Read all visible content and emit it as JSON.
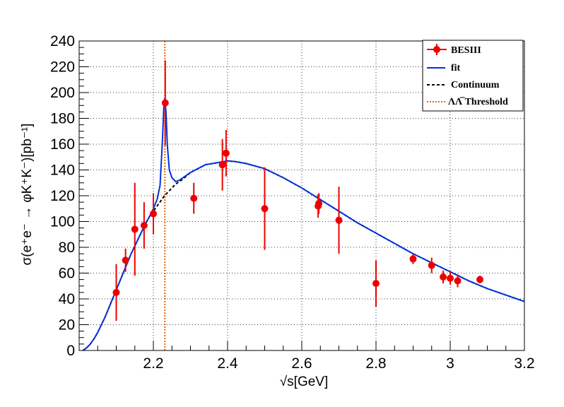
{
  "chart_data": {
    "type": "scatter",
    "xlabel": "√s[GeV]",
    "ylabel": "σ(e⁺e⁻ → φK⁺K⁻)[pb⁻¹]",
    "xlim": [
      2.0,
      3.2
    ],
    "ylim": [
      0,
      240
    ],
    "xticks": [
      2.2,
      2.4,
      2.6,
      2.8,
      3.0,
      3.2
    ],
    "xtick_labels": [
      "2.2",
      "2.4",
      "2.6",
      "2.8",
      "3",
      "3.2"
    ],
    "yticks": [
      0,
      20,
      40,
      60,
      80,
      100,
      120,
      140,
      160,
      180,
      200,
      220,
      240
    ],
    "ytick_labels": [
      "0",
      "20",
      "40",
      "60",
      "80",
      "100",
      "120",
      "140",
      "160",
      "180",
      "200",
      "220",
      "240"
    ],
    "grid": true,
    "legend_position": "top-right",
    "threshold_x": 2.231,
    "series": [
      {
        "name": "BESIII",
        "kind": "points",
        "color": "#ee0000",
        "points": [
          {
            "x": 2.1,
            "y": 45,
            "err": 22
          },
          {
            "x": 2.125,
            "y": 70,
            "err": 9
          },
          {
            "x": 2.15,
            "y": 94,
            "err": 36
          },
          {
            "x": 2.175,
            "y": 97,
            "err": 18
          },
          {
            "x": 2.2,
            "y": 106,
            "err": 16
          },
          {
            "x": 2.232,
            "y": 192,
            "err": 33
          },
          {
            "x": 2.309,
            "y": 118,
            "err": 12
          },
          {
            "x": 2.386,
            "y": 144,
            "err": 20
          },
          {
            "x": 2.396,
            "y": 153,
            "err": 18
          },
          {
            "x": 2.5,
            "y": 110,
            "err": 32
          },
          {
            "x": 2.644,
            "y": 112,
            "err": 9
          },
          {
            "x": 2.646,
            "y": 114,
            "err": 8
          },
          {
            "x": 2.7,
            "y": 101,
            "err": 26
          },
          {
            "x": 2.8,
            "y": 52,
            "err": 18
          },
          {
            "x": 2.9,
            "y": 71,
            "err": 4
          },
          {
            "x": 2.95,
            "y": 66,
            "err": 6
          },
          {
            "x": 2.981,
            "y": 57,
            "err": 5
          },
          {
            "x": 3.0,
            "y": 56,
            "err": 5
          },
          {
            "x": 3.02,
            "y": 54,
            "err": 5
          },
          {
            "x": 3.08,
            "y": 55,
            "err": 3
          }
        ]
      },
      {
        "name": "fit",
        "kind": "line",
        "color": "#0033dd",
        "points": [
          [
            2.01,
            0
          ],
          [
            2.02,
            2
          ],
          [
            2.03,
            5
          ],
          [
            2.04,
            9
          ],
          [
            2.05,
            14
          ],
          [
            2.06,
            20
          ],
          [
            2.07,
            26
          ],
          [
            2.08,
            33
          ],
          [
            2.09,
            40
          ],
          [
            2.1,
            47
          ],
          [
            2.11,
            54
          ],
          [
            2.12,
            61
          ],
          [
            2.13,
            68
          ],
          [
            2.14,
            75
          ],
          [
            2.15,
            81
          ],
          [
            2.16,
            87
          ],
          [
            2.17,
            93
          ],
          [
            2.18,
            99
          ],
          [
            2.19,
            104
          ],
          [
            2.2,
            110
          ],
          [
            2.21,
            117
          ],
          [
            2.218,
            128
          ],
          [
            2.224,
            160
          ],
          [
            2.228,
            188
          ],
          [
            2.231,
            196
          ],
          [
            2.234,
            185
          ],
          [
            2.238,
            158
          ],
          [
            2.243,
            140
          ],
          [
            2.25,
            134
          ],
          [
            2.26,
            131
          ],
          [
            2.27,
            132
          ],
          [
            2.28,
            134
          ],
          [
            2.3,
            138
          ],
          [
            2.32,
            141
          ],
          [
            2.34,
            144
          ],
          [
            2.36,
            145
          ],
          [
            2.38,
            146
          ],
          [
            2.4,
            147
          ],
          [
            2.42,
            146.5
          ],
          [
            2.45,
            145
          ],
          [
            2.5,
            141
          ],
          [
            2.55,
            134
          ],
          [
            2.6,
            126
          ],
          [
            2.65,
            117
          ],
          [
            2.7,
            108
          ],
          [
            2.75,
            99
          ],
          [
            2.8,
            91
          ],
          [
            2.85,
            83
          ],
          [
            2.9,
            75
          ],
          [
            2.95,
            68
          ],
          [
            3.0,
            61
          ],
          [
            3.05,
            54
          ],
          [
            3.1,
            48
          ],
          [
            3.15,
            43
          ],
          [
            3.2,
            38
          ]
        ]
      },
      {
        "name": "Continuum",
        "kind": "dashed-line",
        "color": "#000000",
        "points": [
          [
            2.01,
            0
          ],
          [
            2.02,
            2
          ],
          [
            2.03,
            5
          ],
          [
            2.04,
            9
          ],
          [
            2.05,
            14
          ],
          [
            2.06,
            20
          ],
          [
            2.07,
            26
          ],
          [
            2.08,
            33
          ],
          [
            2.09,
            40
          ],
          [
            2.1,
            47
          ],
          [
            2.11,
            54
          ],
          [
            2.12,
            61
          ],
          [
            2.13,
            68
          ],
          [
            2.14,
            75
          ],
          [
            2.15,
            81
          ],
          [
            2.16,
            87
          ],
          [
            2.17,
            93
          ],
          [
            2.18,
            99
          ],
          [
            2.19,
            104
          ],
          [
            2.2,
            108
          ],
          [
            2.21,
            112
          ],
          [
            2.22,
            116
          ],
          [
            2.23,
            120
          ],
          [
            2.24,
            123
          ],
          [
            2.25,
            126
          ],
          [
            2.26,
            129
          ],
          [
            2.27,
            131
          ],
          [
            2.28,
            133
          ],
          [
            2.3,
            138
          ],
          [
            2.32,
            141
          ],
          [
            2.34,
            144
          ],
          [
            2.36,
            145
          ],
          [
            2.38,
            146
          ],
          [
            2.4,
            147
          ],
          [
            2.42,
            146.5
          ],
          [
            2.45,
            145
          ],
          [
            2.5,
            141
          ],
          [
            2.55,
            134
          ],
          [
            2.6,
            126
          ],
          [
            2.65,
            117
          ],
          [
            2.7,
            108
          ],
          [
            2.75,
            99
          ],
          [
            2.8,
            91
          ],
          [
            2.85,
            83
          ],
          [
            2.9,
            75
          ],
          [
            2.95,
            68
          ],
          [
            3.0,
            61
          ],
          [
            3.05,
            54
          ],
          [
            3.1,
            48
          ],
          [
            3.15,
            43
          ],
          [
            3.2,
            38
          ]
        ]
      },
      {
        "name": "ΛΛ̅ Threshold",
        "kind": "vertical-dotted-line",
        "color": "#ee6600"
      }
    ]
  }
}
